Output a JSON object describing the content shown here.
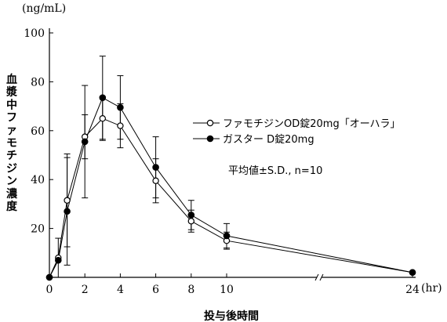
{
  "chart_data": {
    "type": "line",
    "y_unit": "(ng/mL)",
    "x_unit": "(hr)",
    "xlabel": "投与後時間",
    "ylabel": "血漿中ファモチジン濃度",
    "ylim": [
      0,
      100
    ],
    "yticks": [
      0,
      20,
      40,
      60,
      80,
      100
    ],
    "xticks": [
      0,
      2,
      4,
      6,
      8,
      10,
      24
    ],
    "x_axis_break": [
      10,
      24
    ],
    "legend_position": "center-right",
    "note": "平均値±S.D., n=10",
    "series": [
      {
        "name": "ファモチジンOD錠20mg「オーハラ」",
        "marker": "open-circle",
        "x": [
          0,
          0.5,
          1,
          2,
          3,
          4,
          6,
          8,
          10,
          24
        ],
        "y": [
          0,
          8,
          31.5,
          57.5,
          65,
          62,
          39.5,
          23,
          15,
          2
        ],
        "sd": [
          0,
          8,
          19,
          9,
          9,
          9,
          9,
          4.5,
          3.5,
          0
        ]
      },
      {
        "name": "ガスター D錠20mg",
        "marker": "filled-circle",
        "x": [
          0,
          0.5,
          1,
          2,
          3,
          4,
          6,
          8,
          10,
          24
        ],
        "y": [
          0,
          7,
          27,
          55.5,
          73.5,
          69.5,
          45,
          25.5,
          17,
          2
        ],
        "sd": [
          0,
          0,
          22,
          23,
          17,
          13,
          12.5,
          6,
          5,
          0
        ]
      }
    ]
  }
}
